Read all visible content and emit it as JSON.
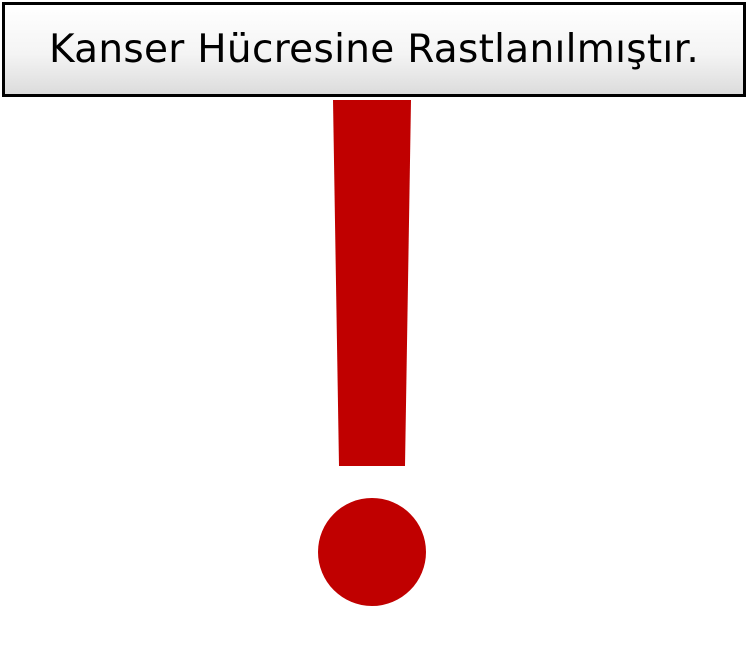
{
  "title": {
    "text": "Kanser Hücresine Rastlanılmıştır."
  },
  "symbol": {
    "icon": "exclamation-mark-icon",
    "color": "#C00000"
  },
  "colors": {
    "background": "#FFFFFF",
    "title_border": "#000000",
    "title_text": "#000000"
  }
}
